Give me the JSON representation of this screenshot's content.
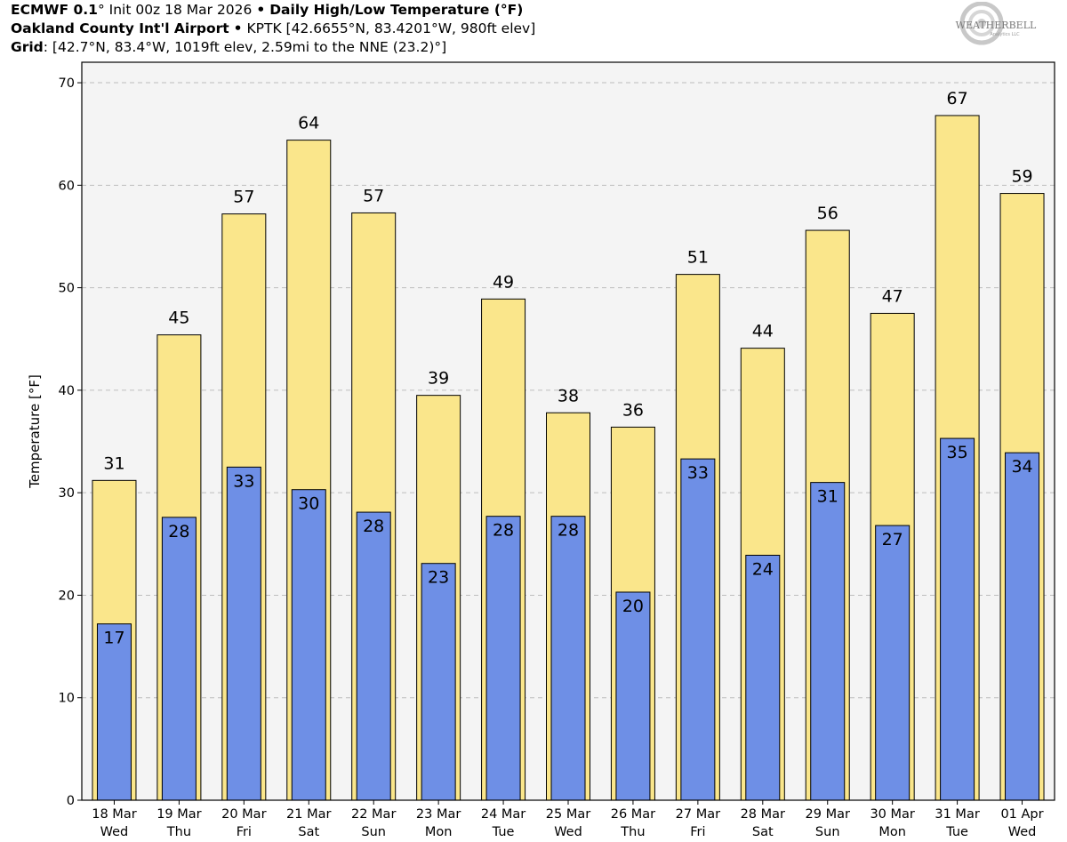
{
  "header": {
    "model": "ECMWF 0.1",
    "deg1": "°",
    "init": "Init 00z 18 Mar 2026",
    "bullet": "•",
    "title": "Daily High/Low Temperature (°F)",
    "station_name": "Oakland County Int'l Airport",
    "station_info": "KPTK [42.6655°N, 83.4201°W, 980ft elev]",
    "grid_label": "Grid",
    "grid_info": ": [42.7°N, 83.4°W, 1019ft elev, 2.59mi to the NNE (23.2)°]"
  },
  "logo": {
    "text": "WEATHERBELL",
    "subtext": "Analytics LLC"
  },
  "chart_data": {
    "type": "bar",
    "title": "Daily High/Low Temperature (°F)",
    "xlabel": "",
    "ylabel": "Temperature [°F]",
    "ylim": [
      0,
      72
    ],
    "yticks": [
      0,
      10,
      20,
      30,
      40,
      50,
      60,
      70
    ],
    "grid": true,
    "categories": [
      {
        "date": "18 Mar",
        "dow": "Wed"
      },
      {
        "date": "19 Mar",
        "dow": "Thu"
      },
      {
        "date": "20 Mar",
        "dow": "Fri"
      },
      {
        "date": "21 Mar",
        "dow": "Sat"
      },
      {
        "date": "22 Mar",
        "dow": "Sun"
      },
      {
        "date": "23 Mar",
        "dow": "Mon"
      },
      {
        "date": "24 Mar",
        "dow": "Tue"
      },
      {
        "date": "25 Mar",
        "dow": "Wed"
      },
      {
        "date": "26 Mar",
        "dow": "Thu"
      },
      {
        "date": "27 Mar",
        "dow": "Fri"
      },
      {
        "date": "28 Mar",
        "dow": "Sat"
      },
      {
        "date": "29 Mar",
        "dow": "Sun"
      },
      {
        "date": "30 Mar",
        "dow": "Mon"
      },
      {
        "date": "31 Mar",
        "dow": "Tue"
      },
      {
        "date": "01 Apr",
        "dow": "Wed"
      }
    ],
    "series": [
      {
        "name": "High",
        "color": "#fae68b",
        "values": [
          31.2,
          45.4,
          57.2,
          64.4,
          57.3,
          39.5,
          48.9,
          37.8,
          36.4,
          51.3,
          44.1,
          55.6,
          47.5,
          66.8,
          59.2
        ],
        "labels": [
          "31",
          "45",
          "57",
          "64",
          "57",
          "39",
          "49",
          "38",
          "36",
          "51",
          "44",
          "56",
          "47",
          "67",
          "59"
        ]
      },
      {
        "name": "Low",
        "color": "#6e8fe6",
        "values": [
          17.2,
          27.6,
          32.5,
          30.3,
          28.1,
          23.1,
          27.7,
          27.7,
          20.3,
          33.3,
          23.9,
          31.0,
          26.8,
          35.3,
          33.9
        ],
        "labels": [
          "17",
          "28",
          "33",
          "30",
          "28",
          "23",
          "28",
          "28",
          "20",
          "33",
          "24",
          "31",
          "27",
          "35",
          "34"
        ]
      }
    ]
  }
}
